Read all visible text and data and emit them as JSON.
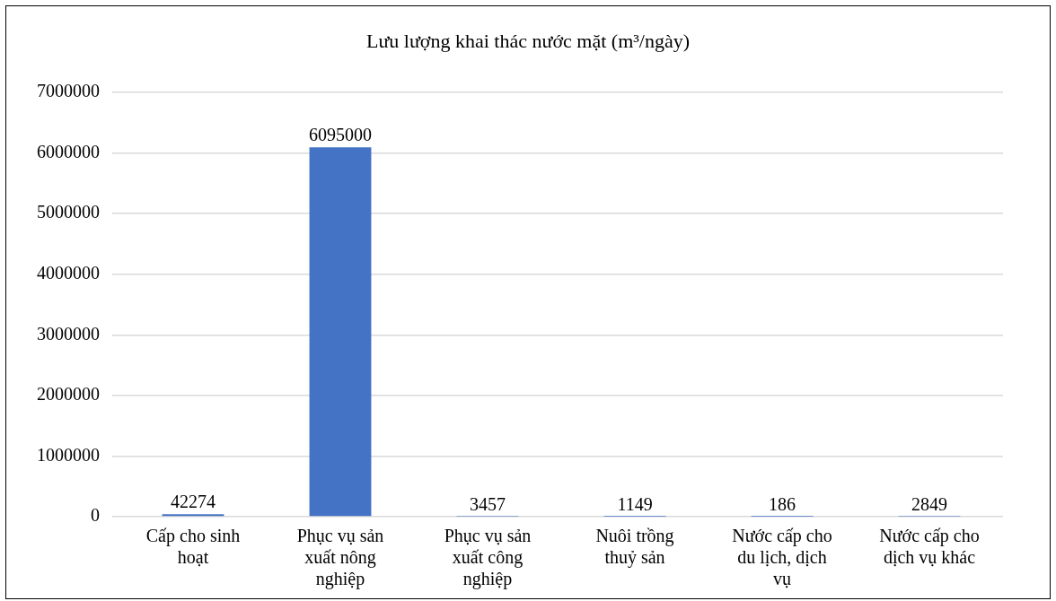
{
  "chart_data": {
    "type": "bar",
    "title": "Lưu lượng khai thác nước mặt (m³/ngày)",
    "categories": [
      "Cấp cho sinh hoạt",
      "Phục vụ sản xuất nông nghiệp",
      "Phục vụ sản xuất công nghiệp",
      "Nuôi trồng thuỷ sản",
      "Nước cấp cho du lịch, dịch vụ",
      "Nước cấp cho dịch vụ khác"
    ],
    "values": [
      42274,
      6095000,
      3457,
      1149,
      186,
      2849
    ],
    "color": "#4472c4",
    "ylim": [
      0,
      7000000
    ],
    "yticks": [
      0,
      1000000,
      2000000,
      3000000,
      4000000,
      5000000,
      6000000,
      7000000
    ],
    "grid": "y",
    "legend": false,
    "data_labels": true
  }
}
